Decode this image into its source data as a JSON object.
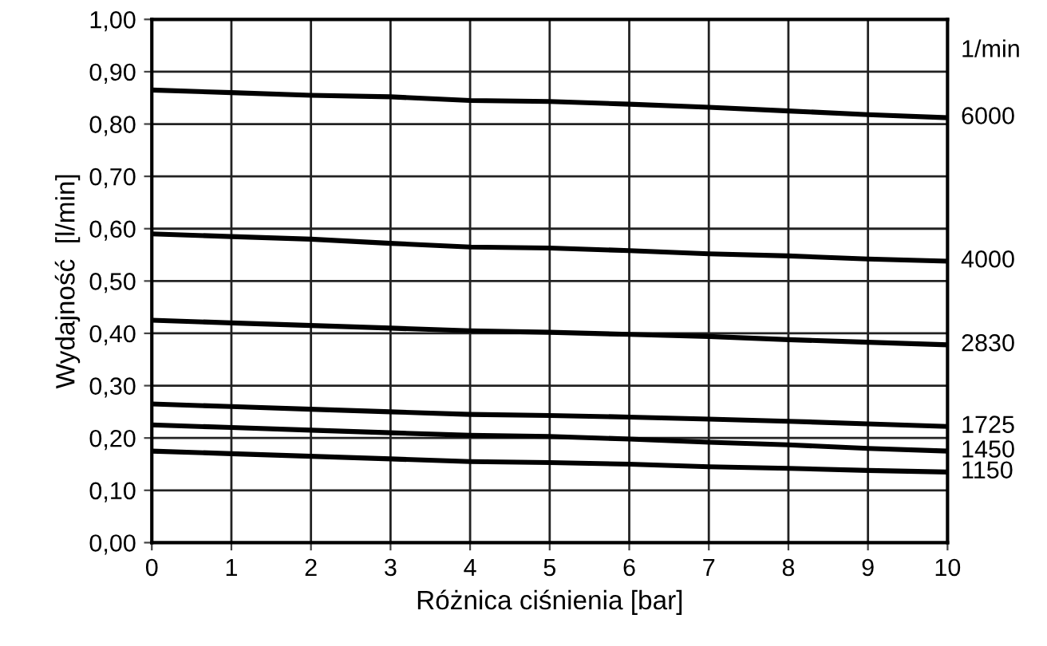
{
  "chart_data": {
    "type": "line",
    "xlabel": "Różnica ciśnienia [bar]",
    "ylabel": "Wydajność  [l/min]",
    "legend_title": "1/min",
    "x": [
      0,
      1,
      2,
      3,
      4,
      5,
      6,
      7,
      8,
      9,
      10
    ],
    "xlim": [
      0,
      10
    ],
    "xticks": [
      0,
      1,
      2,
      3,
      4,
      5,
      6,
      7,
      8,
      9,
      10
    ],
    "ylim": [
      0,
      1
    ],
    "yticks": [
      {
        "value": 0,
        "label": "0,00"
      },
      {
        "value": 0.1,
        "label": "0,10"
      },
      {
        "value": 0.2,
        "label": "0,20"
      },
      {
        "value": 0.3,
        "label": "0,30"
      },
      {
        "value": 0.4,
        "label": "0,40"
      },
      {
        "value": 0.5,
        "label": "0,50"
      },
      {
        "value": 0.6,
        "label": "0,60"
      },
      {
        "value": 0.7,
        "label": "0,70"
      },
      {
        "value": 0.8,
        "label": "0,80"
      },
      {
        "value": 0.9,
        "label": "0,90"
      },
      {
        "value": 1,
        "label": "1,00"
      }
    ],
    "grid": true,
    "marker": "none",
    "line_style": "solid",
    "series": [
      {
        "name": "6000",
        "color": "#000000",
        "values": [
          0.865,
          0.86,
          0.855,
          0.852,
          0.845,
          0.843,
          0.838,
          0.832,
          0.825,
          0.818,
          0.812
        ]
      },
      {
        "name": "4000",
        "color": "#000000",
        "values": [
          0.59,
          0.585,
          0.58,
          0.572,
          0.565,
          0.563,
          0.558,
          0.552,
          0.548,
          0.542,
          0.538
        ]
      },
      {
        "name": "2830",
        "color": "#000000",
        "values": [
          0.425,
          0.42,
          0.415,
          0.41,
          0.405,
          0.402,
          0.398,
          0.394,
          0.388,
          0.383,
          0.378
        ]
      },
      {
        "name": "1725",
        "color": "#000000",
        "values": [
          0.265,
          0.26,
          0.255,
          0.25,
          0.245,
          0.243,
          0.24,
          0.236,
          0.232,
          0.227,
          0.222
        ]
      },
      {
        "name": "1450",
        "color": "#000000",
        "values": [
          0.225,
          0.22,
          0.215,
          0.21,
          0.205,
          0.203,
          0.198,
          0.192,
          0.187,
          0.18,
          0.175
        ]
      },
      {
        "name": "1150",
        "color": "#000000",
        "values": [
          0.175,
          0.17,
          0.165,
          0.16,
          0.155,
          0.153,
          0.15,
          0.145,
          0.142,
          0.138,
          0.135
        ]
      }
    ]
  }
}
